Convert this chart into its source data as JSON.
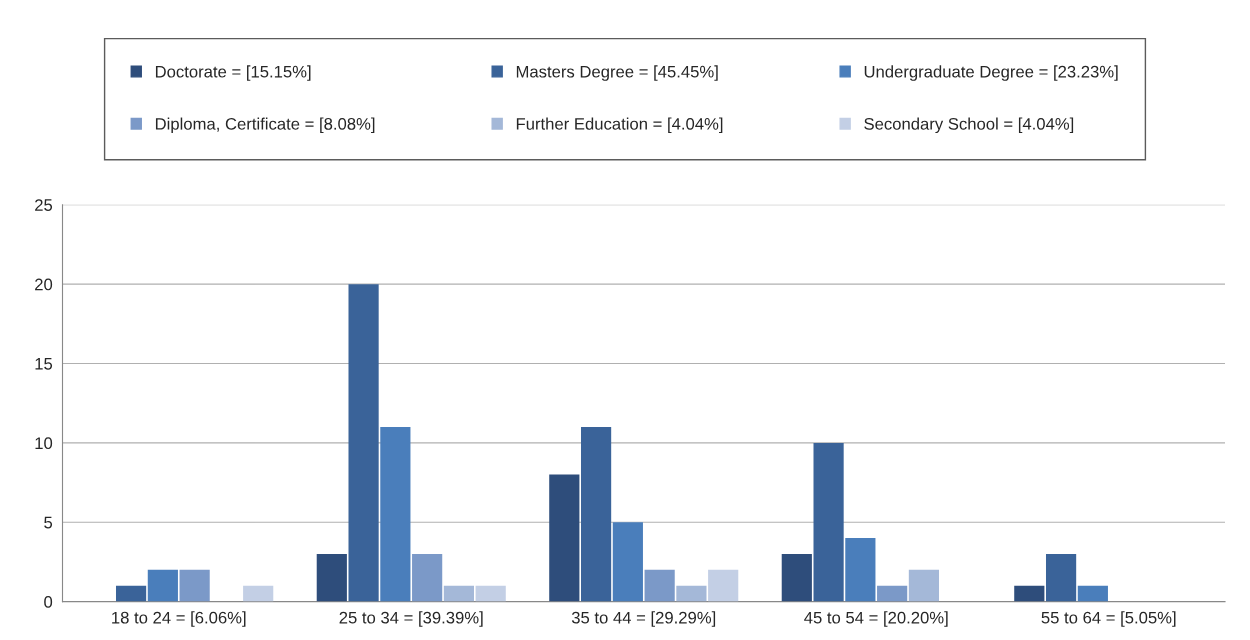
{
  "chart_data": {
    "type": "bar",
    "categories": [
      "18 to 24 = [6.06%]",
      "25 to 34 = [39.39%]",
      "35 to 44 = [29.29%]",
      "45 to 54 = [20.20%]",
      "55 to 64 = [5.05%]"
    ],
    "series": [
      {
        "name": "Doctorate = [15.15%]",
        "color": "#2e4d7b",
        "values": [
          0,
          3,
          8,
          3,
          1
        ]
      },
      {
        "name": "Masters Degree = [45.45%]",
        "color": "#3a6399",
        "values": [
          1,
          20,
          11,
          10,
          3
        ]
      },
      {
        "name": "Undergraduate Degree = [23.23%]",
        "color": "#4a7ebb",
        "values": [
          2,
          11,
          5,
          4,
          1
        ]
      },
      {
        "name": "Diploma, Certificate = [8.08%]",
        "color": "#7b99c8",
        "values": [
          2,
          3,
          2,
          1,
          0
        ]
      },
      {
        "name": "Further Education = [4.04%]",
        "color": "#a4b8d8",
        "values": [
          0,
          1,
          1,
          2,
          0
        ]
      },
      {
        "name": "Secondary School = [4.04%]",
        "color": "#c3cfe5",
        "values": [
          1,
          1,
          2,
          0,
          0
        ]
      }
    ],
    "ylim": [
      0,
      25
    ],
    "yticks": [
      0,
      5,
      10,
      15,
      20,
      25
    ],
    "grid": "y",
    "legend": "top"
  }
}
